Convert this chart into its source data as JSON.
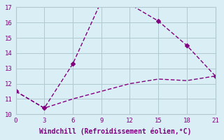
{
  "line1_x": [
    0,
    3,
    6,
    9,
    12,
    15,
    18,
    21
  ],
  "line1_y": [
    11.5,
    10.4,
    13.3,
    17.4,
    17.2,
    16.1,
    14.5,
    12.5
  ],
  "line2_x": [
    0,
    3,
    6,
    9,
    12,
    15,
    18,
    21
  ],
  "line2_y": [
    11.5,
    10.4,
    11.0,
    11.5,
    12.0,
    12.3,
    12.2,
    12.5
  ],
  "color": "#800080",
  "bg_color": "#d9eff5",
  "grid_color": "#b0c8d0",
  "xlabel": "Windchill (Refroidissement éolien,°C)",
  "xlim": [
    0,
    21
  ],
  "ylim": [
    10,
    17
  ],
  "xticks": [
    0,
    3,
    6,
    9,
    12,
    15,
    18,
    21
  ],
  "yticks": [
    10,
    11,
    12,
    13,
    14,
    15,
    16,
    17
  ],
  "title_fontsize": 7,
  "label_fontsize": 7,
  "tick_fontsize": 6.5
}
